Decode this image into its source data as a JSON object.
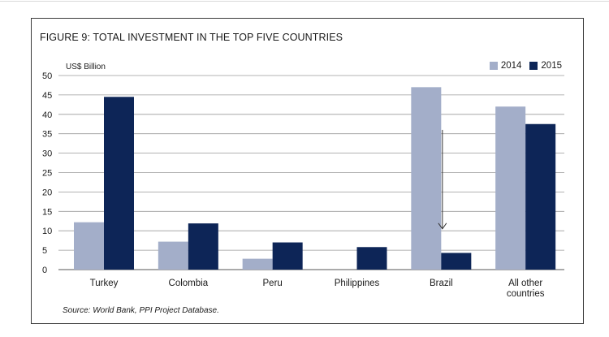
{
  "chart_data": {
    "type": "bar",
    "title": "FIGURE 9: TOTAL INVESTMENT IN THE TOP FIVE COUNTRIES",
    "ylabel": "US$ Billion",
    "xlabel": "",
    "categories": [
      "Turkey",
      "Colombia",
      "Peru",
      "Philippines",
      "Brazil",
      "All other countries"
    ],
    "category_lines": [
      [
        "Turkey"
      ],
      [
        "Colombia"
      ],
      [
        "Peru"
      ],
      [
        "Philippines"
      ],
      [
        "Brazil"
      ],
      [
        "All other",
        "countries"
      ]
    ],
    "series": [
      {
        "name": "2014",
        "color": "#a3aec9",
        "values": [
          12.2,
          7.2,
          2.8,
          0,
          47,
          42
        ]
      },
      {
        "name": "2015",
        "color": "#0d2557",
        "values": [
          44.5,
          11.9,
          7.0,
          5.8,
          4.3,
          37.5
        ]
      }
    ],
    "ylim": [
      0,
      50
    ],
    "yticks": [
      0,
      5,
      10,
      15,
      20,
      25,
      30,
      35,
      40,
      45,
      50
    ],
    "grid": true,
    "legend_position": "top-right",
    "annotation": "downward arrow above Brazil 2015 bar",
    "source": "Source: World Bank, PPI Project Database."
  }
}
